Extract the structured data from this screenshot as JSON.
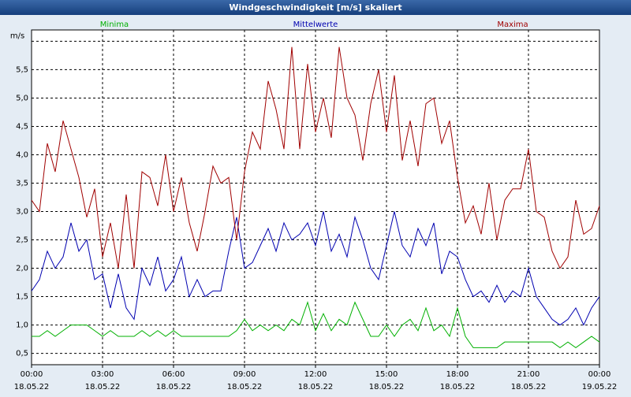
{
  "chart_data": {
    "type": "line",
    "title": "Windgeschwindigkeit [m/s] skaliert",
    "x": [
      0,
      20,
      40,
      60,
      80,
      100,
      120,
      140,
      160,
      180,
      200,
      220,
      240,
      260,
      280,
      300,
      320,
      340,
      360,
      380,
      400,
      420,
      440,
      460,
      480,
      500,
      520,
      540,
      560,
      580,
      600,
      620,
      640,
      660,
      680,
      700,
      720,
      740,
      760,
      780,
      800,
      820,
      840,
      860,
      880,
      900,
      920,
      940,
      960,
      980,
      1000,
      1020,
      1040,
      1060,
      1080,
      1100,
      1120,
      1140,
      1160,
      1180,
      1200,
      1220,
      1240,
      1260,
      1280,
      1300,
      1320,
      1340,
      1360,
      1380,
      1400,
      1420,
      1440
    ],
    "series": [
      {
        "name": "Minima",
        "color": "#00b000",
        "values": [
          0.8,
          0.8,
          0.9,
          0.8,
          0.9,
          1.0,
          1.0,
          1.0,
          0.9,
          0.8,
          0.9,
          0.8,
          0.8,
          0.8,
          0.9,
          0.8,
          0.9,
          0.8,
          0.9,
          0.8,
          0.8,
          0.8,
          0.8,
          0.8,
          0.8,
          0.8,
          0.9,
          1.1,
          0.9,
          1.0,
          0.9,
          1.0,
          0.9,
          1.1,
          1.0,
          1.4,
          0.9,
          1.2,
          0.9,
          1.1,
          1.0,
          1.4,
          1.1,
          0.8,
          0.8,
          1.0,
          0.8,
          1.0,
          1.1,
          0.9,
          1.3,
          0.9,
          1.0,
          0.8,
          1.3,
          0.8,
          0.6,
          0.6,
          0.6,
          0.6,
          0.7,
          0.7,
          0.7,
          0.7,
          0.7,
          0.7,
          0.7,
          0.6,
          0.7,
          0.6,
          0.7,
          0.8,
          0.7
        ]
      },
      {
        "name": "Mittelwerte",
        "color": "#0000b0",
        "values": [
          1.6,
          1.8,
          2.3,
          2.0,
          2.2,
          2.8,
          2.3,
          2.5,
          1.8,
          1.9,
          1.3,
          1.9,
          1.3,
          1.1,
          2.0,
          1.7,
          2.2,
          1.6,
          1.8,
          2.2,
          1.5,
          1.8,
          1.5,
          1.6,
          1.6,
          2.3,
          2.9,
          2.0,
          2.1,
          2.4,
          2.7,
          2.3,
          2.8,
          2.5,
          2.6,
          2.8,
          2.4,
          3.0,
          2.3,
          2.6,
          2.2,
          2.9,
          2.5,
          2.0,
          1.8,
          2.4,
          3.0,
          2.4,
          2.2,
          2.7,
          2.4,
          2.8,
          1.9,
          2.3,
          2.2,
          1.8,
          1.5,
          1.6,
          1.4,
          1.7,
          1.4,
          1.6,
          1.5,
          2.0,
          1.5,
          1.3,
          1.1,
          1.0,
          1.1,
          1.3,
          1.0,
          1.3,
          1.5
        ]
      },
      {
        "name": "Maxima",
        "color": "#a00000",
        "values": [
          3.2,
          3.0,
          4.2,
          3.7,
          4.6,
          4.1,
          3.6,
          2.9,
          3.4,
          2.2,
          2.8,
          2.0,
          3.3,
          2.0,
          3.7,
          3.6,
          3.1,
          4.0,
          3.0,
          3.6,
          2.8,
          2.3,
          3.0,
          3.8,
          3.5,
          3.6,
          2.5,
          3.7,
          4.4,
          4.1,
          5.3,
          4.8,
          4.1,
          5.9,
          4.1,
          5.6,
          4.4,
          5.0,
          4.3,
          5.9,
          5.0,
          4.7,
          3.9,
          4.9,
          5.5,
          4.4,
          5.4,
          3.9,
          4.6,
          3.8,
          4.9,
          5.0,
          4.2,
          4.6,
          3.6,
          2.8,
          3.1,
          2.6,
          3.5,
          2.5,
          3.2,
          3.4,
          3.4,
          4.1,
          3.0,
          2.9,
          2.3,
          2.0,
          2.2,
          3.2,
          2.6,
          2.7,
          3.1
        ]
      }
    ],
    "xlim": [
      0,
      1440
    ],
    "xticks": [
      {
        "value": 0,
        "label": "00:00"
      },
      {
        "value": 180,
        "label": "03:00"
      },
      {
        "value": 360,
        "label": "06:00"
      },
      {
        "value": 540,
        "label": "09:00"
      },
      {
        "value": 720,
        "label": "12:00"
      },
      {
        "value": 900,
        "label": "15:00"
      },
      {
        "value": 1080,
        "label": "18:00"
      },
      {
        "value": 1260,
        "label": "21:00"
      },
      {
        "value": 1440,
        "label": "00:00"
      }
    ],
    "xtick_dates": [
      "18.05.22",
      "18.05.22",
      "18.05.22",
      "18.05.22",
      "18.05.22",
      "18.05.22",
      "18.05.22",
      "18.05.22",
      "19.05.22"
    ],
    "ylim": [
      0.3,
      6.2
    ],
    "yticks": [
      {
        "value": 0.5,
        "label": "0,5"
      },
      {
        "value": 1,
        "label": "1,0"
      },
      {
        "value": 1.5,
        "label": "1,5"
      },
      {
        "value": 2,
        "label": "2,0"
      },
      {
        "value": 2.5,
        "label": "2,5"
      },
      {
        "value": 3,
        "label": "3,0"
      },
      {
        "value": 3.5,
        "label": "3,5"
      },
      {
        "value": 4,
        "label": "4,0"
      },
      {
        "value": 4.5,
        "label": "4,5"
      },
      {
        "value": 5,
        "label": "5,0"
      },
      {
        "value": 5.5,
        "label": "5,5"
      },
      {
        "value": 6,
        "label": "m/s"
      }
    ],
    "grid": true
  }
}
